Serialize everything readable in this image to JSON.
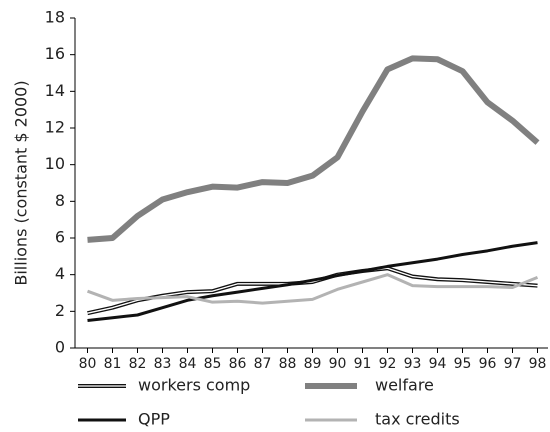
{
  "chart_data": {
    "type": "line",
    "y_label": "Billions (constant $ 2000)",
    "categories": [
      "80",
      "81",
      "82",
      "83",
      "84",
      "85",
      "86",
      "87",
      "88",
      "89",
      "90",
      "91",
      "92",
      "93",
      "94",
      "95",
      "96",
      "97",
      "98"
    ],
    "ylim": [
      0,
      18
    ],
    "yticks": [
      0,
      2,
      4,
      6,
      8,
      10,
      12,
      14,
      16,
      18
    ],
    "grid": false,
    "series": [
      {
        "name": "workers comp",
        "color": "#111111",
        "width": 4,
        "double": true,
        "values": [
          1.9,
          2.2,
          2.6,
          2.85,
          3.05,
          3.1,
          3.5,
          3.5,
          3.5,
          3.6,
          4.0,
          4.2,
          4.35,
          3.9,
          3.75,
          3.7,
          3.6,
          3.5,
          3.4
        ]
      },
      {
        "name": "welfare",
        "color": "#808080",
        "width": 6,
        "values": [
          5.9,
          6.0,
          7.2,
          8.1,
          8.5,
          8.8,
          8.75,
          9.05,
          9.0,
          9.4,
          10.4,
          12.9,
          15.2,
          15.8,
          15.75,
          15.1,
          13.4,
          12.4,
          11.2
        ]
      },
      {
        "name": "QPP",
        "color": "#111111",
        "width": 3,
        "values": [
          1.5,
          1.65,
          1.8,
          2.2,
          2.6,
          2.85,
          3.05,
          3.25,
          3.45,
          3.7,
          3.95,
          4.2,
          4.45,
          4.65,
          4.85,
          5.1,
          5.3,
          5.55,
          5.75
        ]
      },
      {
        "name": "tax credits",
        "color": "#b3b3b3",
        "width": 3,
        "values": [
          3.1,
          2.6,
          2.7,
          2.75,
          2.8,
          2.5,
          2.55,
          2.45,
          2.55,
          2.65,
          3.2,
          3.6,
          4.0,
          3.4,
          3.35,
          3.35,
          3.35,
          3.3,
          3.85
        ]
      }
    ]
  }
}
